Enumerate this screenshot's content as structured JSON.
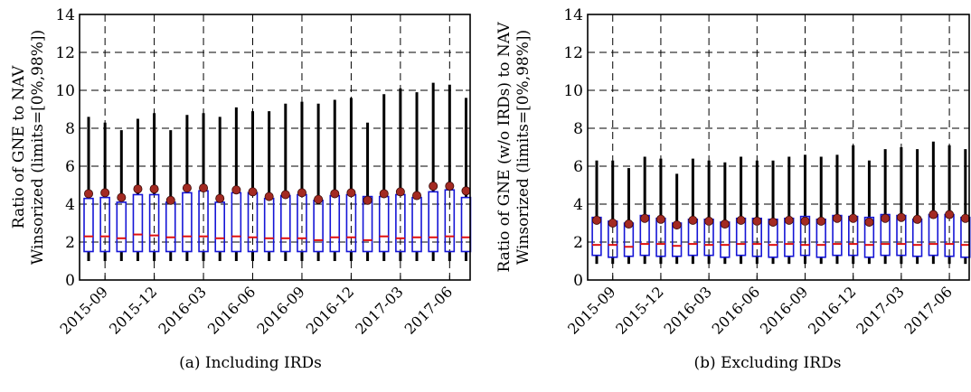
{
  "chart_data": [
    {
      "type": "box",
      "caption": "(a) Including IRDs",
      "ylabel_line1": "Ratio of GNE to NAV",
      "ylabel_line2": "Winsorized (limits=[0%,98%])",
      "ylim": [
        0,
        14
      ],
      "yticks": [
        "0",
        "2",
        "4",
        "6",
        "8",
        "10",
        "12",
        "14"
      ],
      "grid": true,
      "x": [
        "2015-08",
        "2015-09",
        "2015-10",
        "2015-11",
        "2015-12",
        "2016-01",
        "2016-02",
        "2016-03",
        "2016-04",
        "2016-05",
        "2016-06",
        "2016-07",
        "2016-08",
        "2016-09",
        "2016-10",
        "2016-11",
        "2016-12",
        "2017-01",
        "2017-02",
        "2017-03",
        "2017-04",
        "2017-05",
        "2017-06",
        "2017-07"
      ],
      "xtick_labels": [
        "2015-09",
        "2015-12",
        "2016-03",
        "2016-06",
        "2016-09",
        "2016-12",
        "2017-03",
        "2017-06"
      ],
      "q1": [
        1.5,
        1.5,
        1.5,
        1.5,
        1.5,
        1.5,
        1.5,
        1.5,
        1.5,
        1.5,
        1.5,
        1.5,
        1.5,
        1.5,
        1.5,
        1.5,
        1.5,
        1.5,
        1.5,
        1.5,
        1.5,
        1.5,
        1.5,
        1.5
      ],
      "median": [
        2.3,
        2.3,
        2.2,
        2.4,
        2.35,
        2.25,
        2.3,
        2.3,
        2.2,
        2.3,
        2.25,
        2.2,
        2.2,
        2.2,
        2.1,
        2.25,
        2.25,
        2.1,
        2.3,
        2.2,
        2.25,
        2.25,
        2.3,
        2.25
      ],
      "q3": [
        4.3,
        4.35,
        4.1,
        4.5,
        4.5,
        4.1,
        4.6,
        4.7,
        4.1,
        4.6,
        4.6,
        4.3,
        4.45,
        4.5,
        4.2,
        4.45,
        4.5,
        4.4,
        4.4,
        4.5,
        4.35,
        4.65,
        4.75,
        4.35
      ],
      "whisker_low": [
        1.0,
        1.0,
        1.0,
        1.0,
        1.0,
        1.0,
        1.0,
        1.0,
        1.0,
        1.0,
        1.0,
        1.0,
        1.0,
        1.0,
        1.0,
        1.0,
        1.0,
        1.0,
        1.0,
        1.0,
        1.0,
        1.0,
        1.0,
        1.0
      ],
      "whisker_high": [
        8.6,
        8.3,
        7.9,
        8.5,
        8.8,
        7.9,
        8.7,
        8.8,
        8.6,
        9.1,
        8.9,
        8.9,
        9.3,
        9.4,
        9.3,
        9.5,
        9.6,
        8.3,
        9.8,
        10.1,
        9.9,
        10.4,
        10.3,
        9.6
      ],
      "mean": [
        4.55,
        4.6,
        4.35,
        4.8,
        4.8,
        4.2,
        4.85,
        4.85,
        4.3,
        4.75,
        4.65,
        4.4,
        4.5,
        4.6,
        4.25,
        4.55,
        4.6,
        4.2,
        4.55,
        4.65,
        4.45,
        4.95,
        4.95,
        4.7
      ]
    },
    {
      "type": "box",
      "caption": "(b) Excluding IRDs",
      "ylabel_line1": "Ratio of GNE (w/o IRDs) to NAV",
      "ylabel_line2": "Winsorized (limits=[0%,98%])",
      "ylim": [
        0,
        14
      ],
      "yticks": [
        "0",
        "2",
        "4",
        "6",
        "8",
        "10",
        "12",
        "14"
      ],
      "grid": true,
      "x": [
        "2015-08",
        "2015-09",
        "2015-10",
        "2015-11",
        "2015-12",
        "2016-01",
        "2016-02",
        "2016-03",
        "2016-04",
        "2016-05",
        "2016-06",
        "2016-07",
        "2016-08",
        "2016-09",
        "2016-10",
        "2016-11",
        "2016-12",
        "2017-01",
        "2017-02",
        "2017-03",
        "2017-04",
        "2017-05",
        "2017-06",
        "2017-07"
      ],
      "xtick_labels": [
        "2015-09",
        "2015-12",
        "2016-03",
        "2016-06",
        "2016-09",
        "2016-12",
        "2017-03",
        "2017-06"
      ],
      "q1": [
        1.3,
        1.2,
        1.25,
        1.3,
        1.25,
        1.25,
        1.3,
        1.3,
        1.2,
        1.3,
        1.25,
        1.2,
        1.25,
        1.3,
        1.2,
        1.3,
        1.3,
        1.2,
        1.3,
        1.3,
        1.25,
        1.3,
        1.25,
        1.2
      ],
      "median": [
        1.85,
        1.85,
        1.75,
        1.9,
        1.9,
        1.8,
        1.9,
        1.85,
        1.85,
        1.9,
        1.9,
        1.85,
        1.9,
        1.85,
        1.85,
        1.9,
        1.9,
        1.85,
        1.9,
        1.9,
        1.85,
        1.9,
        1.9,
        1.85
      ],
      "q3": [
        3.3,
        3.1,
        3.0,
        3.4,
        3.25,
        3.0,
        3.2,
        3.2,
        3.05,
        3.25,
        3.25,
        3.2,
        3.25,
        3.35,
        3.2,
        3.4,
        3.35,
        3.3,
        3.45,
        3.4,
        3.2,
        3.45,
        3.45,
        3.3
      ],
      "whisker_low": [
        0.85,
        0.85,
        0.85,
        0.85,
        0.85,
        0.85,
        0.85,
        0.85,
        0.85,
        0.85,
        0.85,
        0.85,
        0.85,
        0.85,
        0.85,
        0.85,
        0.85,
        0.85,
        0.85,
        0.85,
        0.85,
        0.85,
        0.85,
        0.85
      ],
      "whisker_high": [
        6.3,
        6.3,
        5.9,
        6.5,
        6.4,
        5.6,
        6.4,
        6.3,
        6.2,
        6.5,
        6.3,
        6.3,
        6.5,
        6.6,
        6.5,
        6.6,
        7.1,
        6.3,
        6.9,
        7.0,
        6.9,
        7.3,
        7.1,
        6.9
      ],
      "mean": [
        3.15,
        3.0,
        2.95,
        3.25,
        3.2,
        2.9,
        3.15,
        3.1,
        2.95,
        3.15,
        3.1,
        3.05,
        3.15,
        3.1,
        3.1,
        3.25,
        3.25,
        3.05,
        3.25,
        3.3,
        3.2,
        3.45,
        3.45,
        3.25
      ]
    }
  ]
}
